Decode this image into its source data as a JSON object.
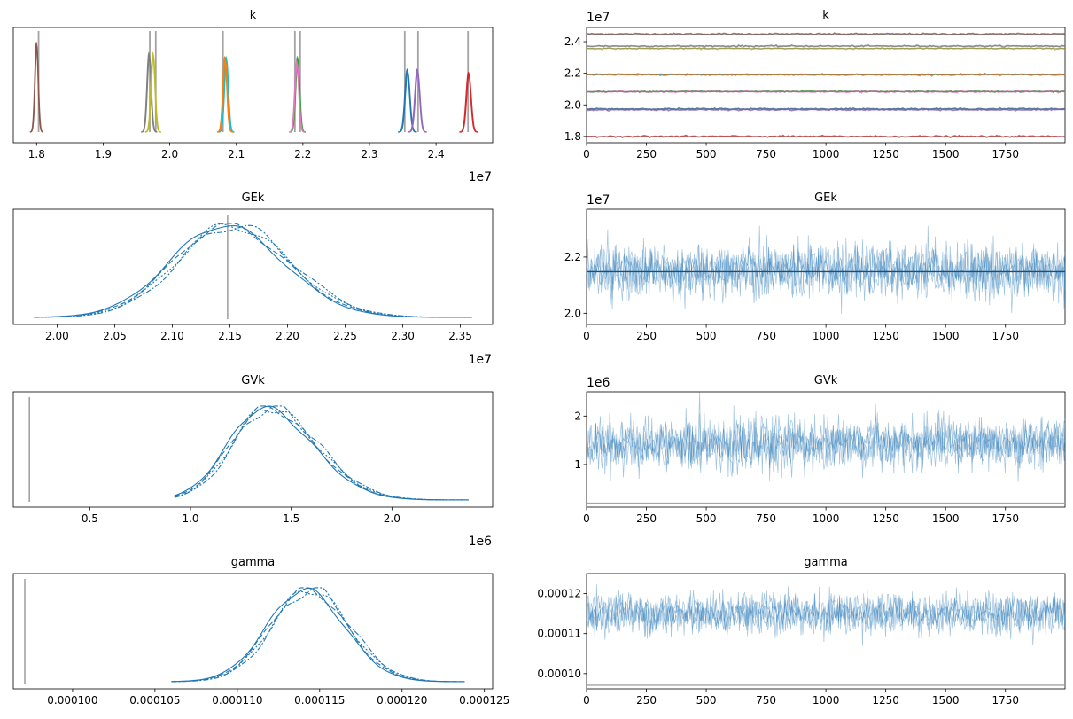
{
  "colors": {
    "chain_blue": "#1f77b4",
    "trace_blue": "#2e7cb8",
    "ref_line": "#a3a3a3",
    "k_components": [
      "#8c564b",
      "#7f7f7f",
      "#bcbd22",
      "#17becf",
      "#ff7f0e",
      "#2ca02c",
      "#e377c2",
      "#1f77b4",
      "#9467bd",
      "#d62728"
    ]
  },
  "chart_data": [
    {
      "id": "k-posterior",
      "type": "line",
      "title": "k",
      "offset_label": "1e7",
      "xlim": [
        1.765,
        2.485
      ],
      "xticks": [
        1.8,
        1.9,
        2.0,
        2.1,
        2.2,
        2.3,
        2.4
      ],
      "xtick_labels": [
        "1.8",
        "1.9",
        "2.0",
        "2.1",
        "2.2",
        "2.3",
        "2.4"
      ],
      "components": [
        {
          "name": "k[0]",
          "center": 1.8,
          "sd": 0.0025,
          "height": 0.88
        },
        {
          "name": "k[1]",
          "center": 1.969,
          "sd": 0.003,
          "height": 0.78
        },
        {
          "name": "k[2]",
          "center": 1.975,
          "sd": 0.003,
          "height": 0.78
        },
        {
          "name": "k[3]",
          "center": 2.085,
          "sd": 0.003,
          "height": 0.74
        },
        {
          "name": "k[4]",
          "center": 2.083,
          "sd": 0.003,
          "height": 0.74
        },
        {
          "name": "k[5]",
          "center": 2.192,
          "sd": 0.003,
          "height": 0.74
        },
        {
          "name": "k[6]",
          "center": 2.191,
          "sd": 0.003,
          "height": 0.7
        },
        {
          "name": "k[7]",
          "center": 2.357,
          "sd": 0.0035,
          "height": 0.62
        },
        {
          "name": "k[8]",
          "center": 2.372,
          "sd": 0.0035,
          "height": 0.62
        },
        {
          "name": "k[9]",
          "center": 2.449,
          "sd": 0.0035,
          "height": 0.59
        }
      ],
      "ref_lines": [
        1.803,
        1.97,
        1.979,
        2.079,
        2.08,
        2.188,
        2.196,
        2.353,
        2.373,
        2.448
      ]
    },
    {
      "id": "k-trace",
      "type": "line",
      "title": "k",
      "offset_label": "1e7",
      "xlim": [
        0,
        1999
      ],
      "xticks": [
        0,
        250,
        500,
        750,
        1000,
        1250,
        1500,
        1750
      ],
      "xtick_labels": [
        "0",
        "250",
        "500",
        "750",
        "1000",
        "1250",
        "1500",
        "1750"
      ],
      "ylim": [
        1.76,
        2.49
      ],
      "yticks": [
        1.8,
        2.0,
        2.2,
        2.4
      ],
      "ytick_labels": [
        "1.8",
        "2.0",
        "2.2",
        "2.4"
      ],
      "levels": [
        2.449,
        2.372,
        2.357,
        2.192,
        2.191,
        2.085,
        2.083,
        1.975,
        1.969,
        1.8
      ],
      "level_sd": 0.0025
    },
    {
      "id": "gek-posterior",
      "type": "line",
      "title": "GEk",
      "offset_label": "1e7",
      "xlim": [
        1.962,
        2.378
      ],
      "xticks": [
        2.0,
        2.05,
        2.1,
        2.15,
        2.2,
        2.25,
        2.3,
        2.35
      ],
      "xtick_labels": [
        "2.00",
        "2.05",
        "2.10",
        "2.15",
        "2.20",
        "2.25",
        "2.30",
        "2.35"
      ],
      "support": [
        1.98,
        2.36
      ],
      "center": 2.149,
      "sd_left": 0.047,
      "sd_right": 0.051,
      "ref_lines": [
        2.148
      ]
    },
    {
      "id": "gek-trace",
      "type": "line",
      "title": "GEk",
      "offset_label": "1e7",
      "xlim": [
        0,
        1999
      ],
      "xticks": [
        0,
        250,
        500,
        750,
        1000,
        1250,
        1500,
        1750
      ],
      "xtick_labels": [
        "0",
        "250",
        "500",
        "750",
        "1000",
        "1250",
        "1500",
        "1750"
      ],
      "ylim": [
        1.96,
        2.37
      ],
      "yticks": [
        2.0,
        2.2
      ],
      "ytick_labels": [
        "2.0",
        "2.2"
      ],
      "mean": 2.15,
      "sd": 0.045,
      "ref_value": 2.148
    },
    {
      "id": "gvk-posterior",
      "type": "line",
      "title": "GVk",
      "offset_label": "1e6",
      "xlim": [
        0.12,
        2.5
      ],
      "xticks": [
        0.5,
        1.0,
        1.5,
        2.0
      ],
      "xtick_labels": [
        "0.5",
        "1.0",
        "1.5",
        "2.0"
      ],
      "support": [
        0.92,
        2.38
      ],
      "center": 1.38,
      "sd_left": 0.18,
      "sd_right": 0.24,
      "ref_lines": [
        0.2
      ]
    },
    {
      "id": "gvk-trace",
      "type": "line",
      "title": "GVk",
      "offset_label": "1e6",
      "xlim": [
        0,
        1999
      ],
      "xticks": [
        0,
        250,
        500,
        750,
        1000,
        1250,
        1500,
        1750
      ],
      "xtick_labels": [
        "0",
        "250",
        "500",
        "750",
        "1000",
        "1250",
        "1500",
        "1750"
      ],
      "ylim": [
        0.12,
        2.5
      ],
      "yticks": [
        1,
        2
      ],
      "ytick_labels": [
        "1",
        "2"
      ],
      "mean": 1.42,
      "sd": 0.25,
      "ref_value": 0.2
    },
    {
      "id": "gamma-posterior",
      "type": "line",
      "title": "gamma",
      "offset_label": "",
      "xlim": [
        9.64e-05,
        0.0001255
      ],
      "xticks": [
        0.0001,
        0.000105,
        0.00011,
        0.000115,
        0.00012,
        0.000125
      ],
      "xtick_labels": [
        "0.000100",
        "0.000105",
        "0.000110",
        "0.000115",
        "0.000120",
        "0.000125"
      ],
      "support": [
        0.000106,
        0.0001238
      ],
      "center": 0.0001143,
      "sd_left": 2.3e-06,
      "sd_right": 2.4e-06,
      "ref_lines": [
        9.71e-05
      ]
    },
    {
      "id": "gamma-trace",
      "type": "line",
      "title": "gamma",
      "offset_label": "",
      "xlim": [
        0,
        1999
      ],
      "xticks": [
        0,
        250,
        500,
        750,
        1000,
        1250,
        1500,
        1750
      ],
      "xtick_labels": [
        "0",
        "250",
        "500",
        "750",
        "1000",
        "1250",
        "1500",
        "1750"
      ],
      "ylim": [
        9.62e-05,
        0.000125
      ],
      "yticks": [
        0.0001,
        0.00011,
        0.00012
      ],
      "ytick_labels": [
        "0.00010",
        "0.00011",
        "0.00012"
      ],
      "mean": 0.000115,
      "sd": 2.4e-06,
      "ref_value": 9.71e-05
    }
  ]
}
